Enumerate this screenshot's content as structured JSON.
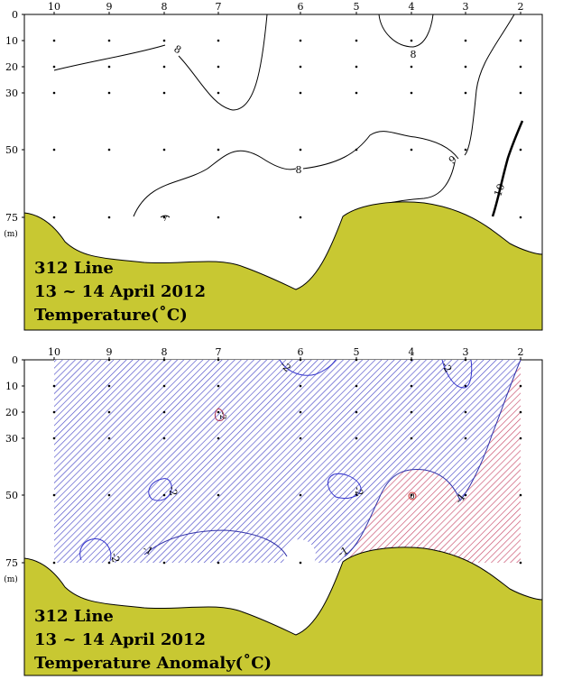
{
  "chart_data": [
    {
      "type": "contour",
      "title_lines": [
        "312 Line",
        "13 ~ 14 April 2012",
        "Temperature(˚C)"
      ],
      "stations": [
        "10",
        "9",
        "8",
        "7",
        "6",
        "5",
        "4",
        "3",
        "2"
      ],
      "depth_ticks": [
        0,
        10,
        20,
        30,
        50,
        75
      ],
      "depth_unit": "(m)",
      "sample_depths": [
        10,
        20,
        30,
        50,
        75
      ],
      "contour_labels": [
        "8",
        "8",
        "8",
        "9",
        "10",
        "7"
      ],
      "bottom_color": "#c8c832"
    },
    {
      "type": "contour",
      "title_lines": [
        "312 Line",
        "13 ~ 14 April 2012",
        "Temperature Anomaly(˚C)"
      ],
      "stations": [
        "10",
        "9",
        "8",
        "7",
        "6",
        "5",
        "4",
        "3",
        "2"
      ],
      "depth_ticks": [
        0,
        10,
        20,
        30,
        50,
        75
      ],
      "depth_unit": "(m)",
      "sample_depths": [
        0,
        10,
        20,
        30,
        50,
        75
      ],
      "contour_labels": [
        "-2",
        "-2",
        "-2",
        "-2",
        "-2",
        "-2",
        "-1",
        "-1",
        "-1",
        "0"
      ],
      "negative_color": "#3333cc",
      "positive_color": "#cc3333",
      "bottom_color": "#c8c832"
    }
  ]
}
